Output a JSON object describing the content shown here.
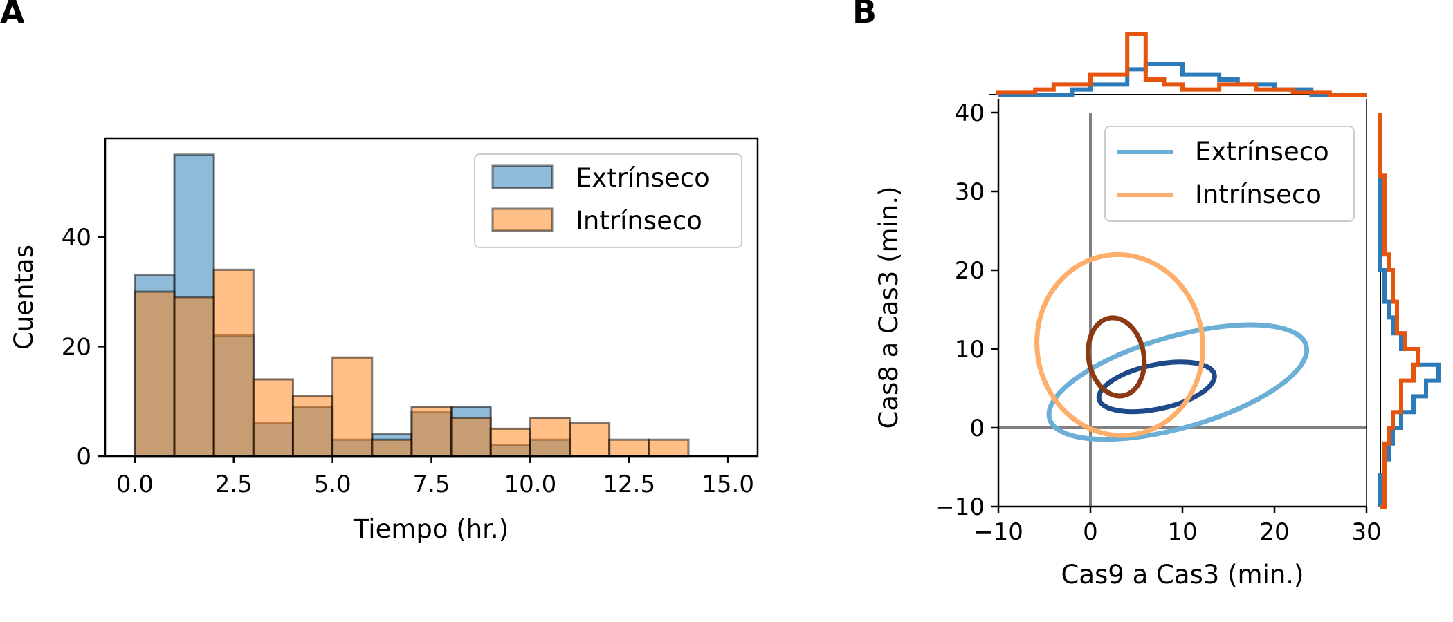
{
  "panels": {
    "a_letter": "A",
    "b_letter": "B"
  },
  "colors": {
    "extrinsic_fill": "#1f77b4",
    "intrinsic_fill": "#ff7f0e",
    "extrinsic_light": "#6baed6",
    "intrinsic_light": "#fdae6b",
    "extrinsic_dark": "#1f4a8a",
    "intrinsic_dark": "#8c3a14",
    "marginal_blue": "#2b7bba",
    "marginal_orange": "#e6550d"
  },
  "chart_data": [
    {
      "id": "A",
      "type": "bar",
      "title": "",
      "xlabel": "Tiempo (hr.)",
      "ylabel": "Cuentas",
      "xlim": [
        -0.75,
        15.75
      ],
      "ylim": [
        0,
        58
      ],
      "xticks": [
        "0.0",
        "2.5",
        "5.0",
        "7.5",
        "10.0",
        "12.5",
        "15.0"
      ],
      "yticks": [
        "0",
        "20",
        "40"
      ],
      "bin_edges": [
        0,
        1,
        2,
        3,
        4,
        5,
        6,
        7,
        8,
        9,
        10,
        11,
        12,
        13,
        14
      ],
      "legend_position": "top-right",
      "series": [
        {
          "name": "Extrínseco",
          "values": [
            33,
            55,
            22,
            6,
            9,
            3,
            4,
            8,
            9,
            2,
            3,
            0,
            0,
            0
          ]
        },
        {
          "name": "Intrínseco",
          "values": [
            30,
            29,
            34,
            14,
            11,
            18,
            3,
            9,
            7,
            5,
            7,
            6,
            3,
            3
          ]
        }
      ]
    },
    {
      "id": "B",
      "type": "scatter",
      "title": "",
      "xlabel": "Cas9 a Cas3 (min.)",
      "ylabel": "Cas8 a Cas3 (min.)",
      "xlim": [
        -10,
        30
      ],
      "ylim": [
        -10,
        40
      ],
      "xticks": [
        "−10",
        "0",
        "10",
        "20",
        "30"
      ],
      "yticks": [
        "−10",
        "0",
        "10",
        "20",
        "30",
        "40"
      ],
      "legend_position": "top-right",
      "series": [
        {
          "name": "Extrínseco",
          "contours": [
            {
              "cx": 9.5,
              "cy": 5.8,
              "rx": 14.5,
              "ry": 5.8,
              "angle_deg": 16
            },
            {
              "cx": 7.2,
              "cy": 5.2,
              "rx": 6.4,
              "ry": 2.8,
              "angle_deg": 12
            }
          ]
        },
        {
          "name": "Intrínseco",
          "contours": [
            {
              "cx": 3.2,
              "cy": 10.5,
              "rx": 9.0,
              "ry": 11.5,
              "angle_deg": 8
            },
            {
              "cx": 2.8,
              "cy": 9.0,
              "rx": 3.0,
              "ry": 5.0,
              "angle_deg": 10
            }
          ]
        }
      ],
      "marginal_x": {
        "bin_edges": [
          -10,
          -8,
          -6,
          -4,
          -2,
          0,
          2,
          4,
          6,
          8,
          10,
          12,
          14,
          16,
          18,
          20,
          22,
          24,
          26,
          28,
          30
        ],
        "extrinsic": [
          0,
          0,
          0,
          0,
          1,
          2,
          2,
          5,
          6,
          6,
          4,
          4,
          3,
          2,
          2,
          1,
          1,
          0,
          0,
          0
        ],
        "intrinsic": [
          0.5,
          0.5,
          1,
          2,
          2,
          4,
          4,
          12,
          3,
          2,
          1,
          1,
          2,
          2,
          1,
          1,
          0.5,
          0.5,
          0,
          0
        ]
      },
      "marginal_y": {
        "bin_edges": [
          -10,
          -8,
          -6,
          -4,
          -2,
          0,
          2,
          4,
          6,
          8,
          10,
          12,
          14,
          16,
          18,
          20,
          22,
          24,
          26,
          28,
          30,
          32,
          34,
          36,
          38,
          40
        ],
        "extrinsic": [
          0,
          0,
          1,
          2,
          3,
          5,
          8,
          11,
          14,
          9,
          5,
          3,
          2,
          1,
          1,
          0,
          0,
          0,
          0,
          0,
          0,
          0,
          0,
          0,
          0
        ],
        "intrinsic": [
          1,
          1,
          1,
          1,
          2,
          3,
          5,
          5,
          8,
          9,
          6,
          4,
          4,
          3,
          3,
          2,
          1,
          1,
          1,
          1,
          1,
          0,
          0,
          0,
          0
        ]
      }
    }
  ]
}
